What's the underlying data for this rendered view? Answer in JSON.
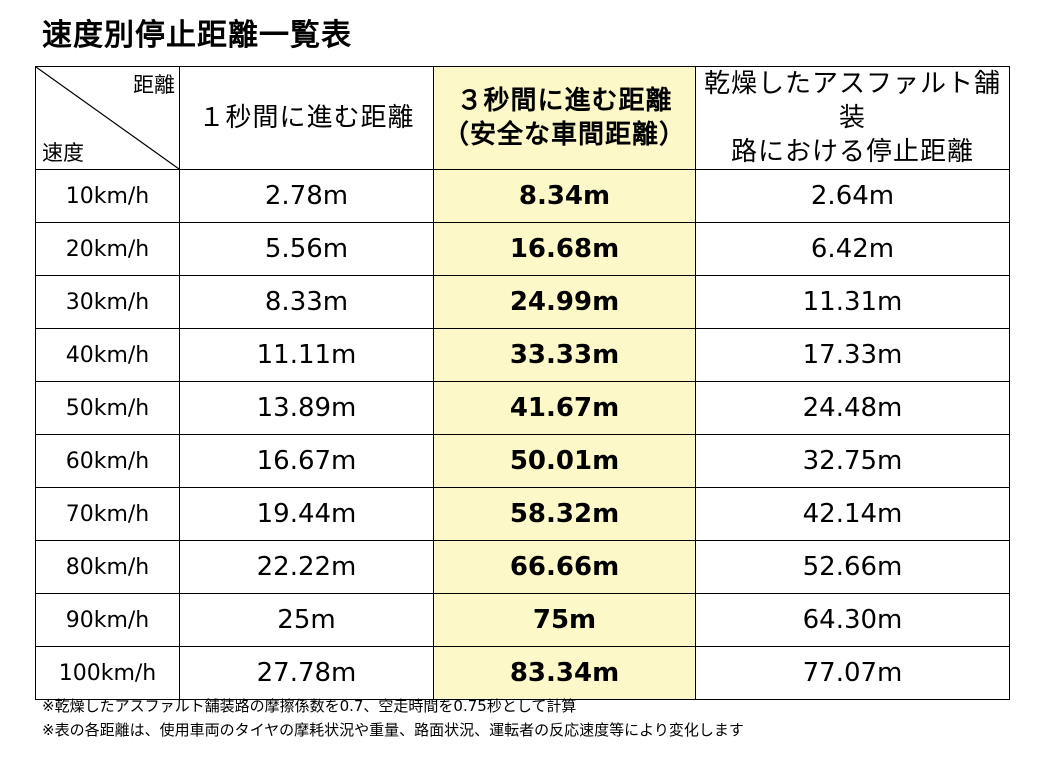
{
  "title": "速度別停止距離一覧表",
  "header": {
    "corner_top": "距離",
    "corner_bottom": "速度",
    "col1": "１秒間に進む距離",
    "col2_line1": "３秒間に進む距離",
    "col2_line2": "（安全な車間距離）",
    "col3_line1": "乾燥したアスファルト舗装",
    "col3_line2": "路における停止距離"
  },
  "rows": [
    {
      "speed": "10km/h",
      "one_sec": "2.78m",
      "three_sec": "8.34m",
      "stop": "2.64m"
    },
    {
      "speed": "20km/h",
      "one_sec": "5.56m",
      "three_sec": "16.68m",
      "stop": "6.42m"
    },
    {
      "speed": "30km/h",
      "one_sec": "8.33m",
      "three_sec": "24.99m",
      "stop": "11.31m"
    },
    {
      "speed": "40km/h",
      "one_sec": "11.11m",
      "three_sec": "33.33m",
      "stop": "17.33m"
    },
    {
      "speed": "50km/h",
      "one_sec": "13.89m",
      "three_sec": "41.67m",
      "stop": "24.48m"
    },
    {
      "speed": "60km/h",
      "one_sec": "16.67m",
      "three_sec": "50.01m",
      "stop": "32.75m"
    },
    {
      "speed": "70km/h",
      "one_sec": "19.44m",
      "three_sec": "58.32m",
      "stop": "42.14m"
    },
    {
      "speed": "80km/h",
      "one_sec": "22.22m",
      "three_sec": "66.66m",
      "stop": "52.66m"
    },
    {
      "speed": "90km/h",
      "one_sec": "25m",
      "three_sec": "75m",
      "stop": "64.30m"
    },
    {
      "speed": "100km/h",
      "one_sec": "27.78m",
      "three_sec": "83.34m",
      "stop": "77.07m"
    }
  ],
  "notes": [
    "※乾燥したアスファルト舗装路の摩擦係数を0.7、空走時間を0.75秒として計算",
    "※表の各距離は、使用車両のタイヤの摩耗状況や重量、路面状況、運転者の反応速度等により変化します"
  ],
  "colors": {
    "highlight_column": "#fcf8c8",
    "border": "#000000"
  }
}
